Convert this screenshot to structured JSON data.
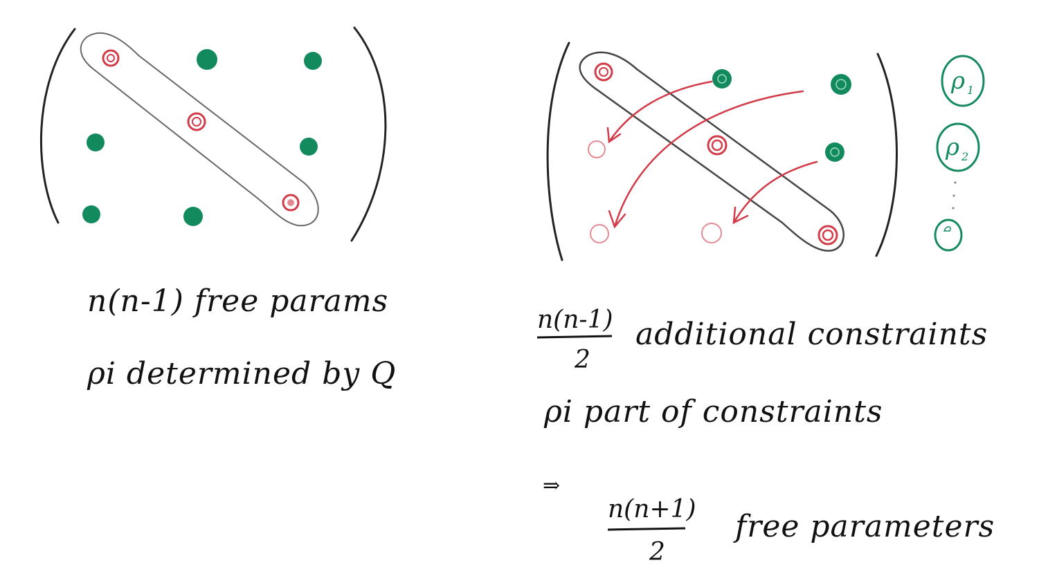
{
  "colors": {
    "ink": "#111111",
    "green": "#138a5e",
    "red": "#d23a48",
    "outline": "#555555"
  },
  "left": {
    "line1": "n(n-1) free params",
    "line2": "ρi determined by Q"
  },
  "right": {
    "frac_num": "n(n-1)",
    "frac_den": "2",
    "line1_rest": "additional constraints",
    "line2": "ρi part of constraints",
    "implies": "⇒",
    "result_num": "n(n+1)",
    "result_den": "2",
    "result_rest": "free parameters",
    "side_labels": [
      "ρ",
      "ρ"
    ],
    "side_subs": [
      "1",
      "2"
    ],
    "ellipsis": "⋮"
  }
}
